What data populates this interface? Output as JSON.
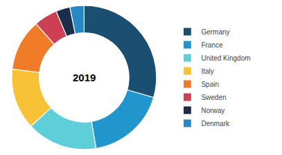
{
  "chart_data": {
    "type": "donut",
    "categories": [
      "Germany",
      "France",
      "United Kingdom",
      "Italy",
      "Spain",
      "Sweden",
      "Norway",
      "Denmark"
    ],
    "values": [
      28,
      17,
      15,
      13,
      11,
      5,
      3,
      3
    ],
    "colors": [
      "#1b4f72",
      "#2196cc",
      "#5ecfd8",
      "#f9c135",
      "#f07c2a",
      "#cc3f55",
      "#1c2d4a",
      "#2489c5"
    ],
    "annotations": [
      "2019"
    ],
    "legend": "right"
  }
}
